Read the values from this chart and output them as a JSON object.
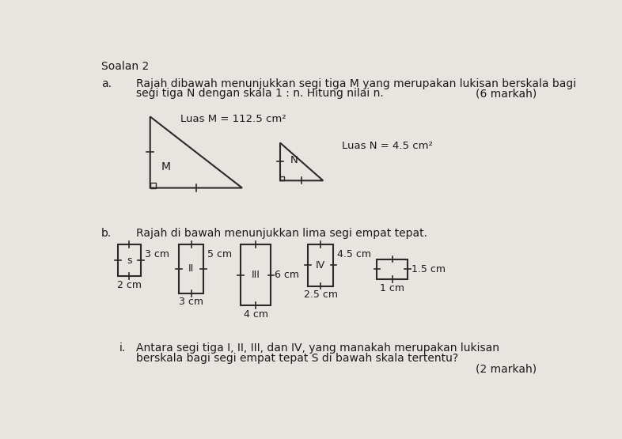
{
  "title": "Soalan 2",
  "bg_color": "#e8e5e0",
  "text_color": "#1a1a1a",
  "part_a_label": "a.",
  "part_a_text1": "Rajah dibawah menunjukkan segi tiga M yang merupakan lukisan berskala bagi",
  "part_a_text2": "segi tiga N dengan skala 1 : n. Hitung nilai n.",
  "part_a_marks": "(6 markah)",
  "luas_M": "Luas M = 112.5 cm²",
  "luas_N": "Luas N = 4.5 cm²",
  "label_M": "M",
  "label_N": "N",
  "part_b_label": "b.",
  "part_b_text": "Rajah di bawah menunjukkan lima segi empat tepat.",
  "rect_S_label": "s",
  "rect_S_w_label": "3 cm",
  "rect_S_h_label": "2 cm",
  "rect_II_label": "II",
  "rect_II_w_label": "5 cm",
  "rect_II_h_label": "3 cm",
  "rect_III_label": "III",
  "rect_III_w_label": "6 cm",
  "rect_III_h_label": "4 cm",
  "rect_IV_label": "IV",
  "rect_IV_w_label": "4.5 cm",
  "rect_IV_h_label": "2.5 cm",
  "rect_V_w_label": "1.5 cm",
  "rect_V_h_label": "1 cm",
  "part_i_label": "i.",
  "part_i_text1": "Antara segi tiga I, II, III, dan IV, yang manakah merupakan lukisan",
  "part_i_text2": "berskala bagi segi empat tepat S di bawah skala tertentu?",
  "part_i_marks": "(2 markah)"
}
